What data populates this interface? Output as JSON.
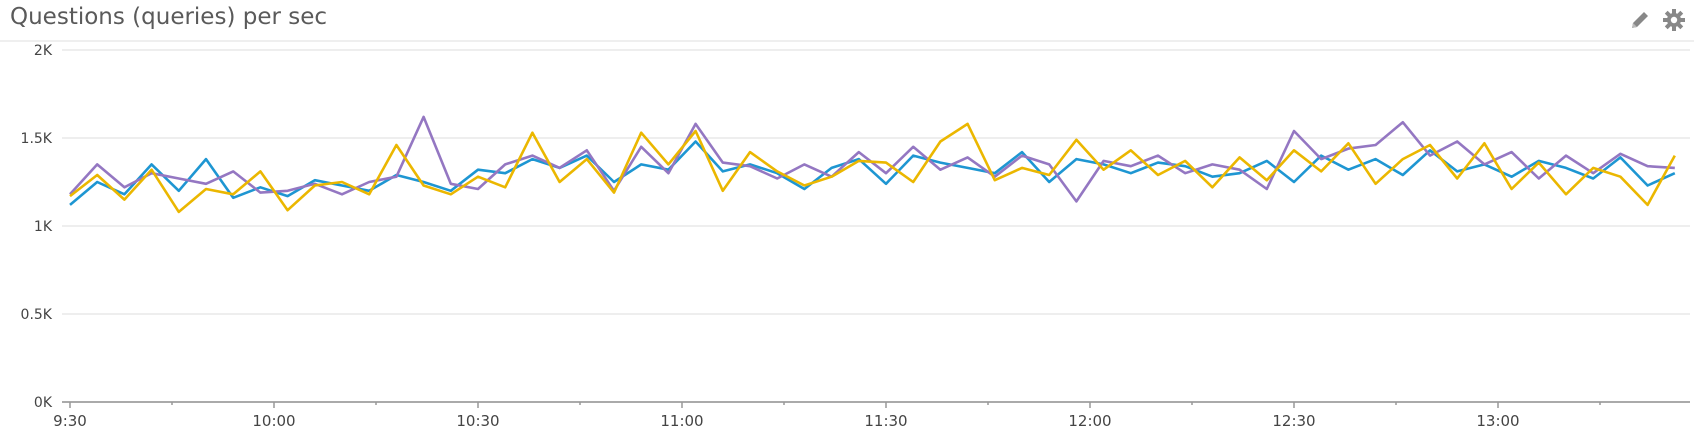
{
  "header": {
    "title": "Questions (queries) per sec",
    "icons": [
      "pencil-icon",
      "gear-icon"
    ]
  },
  "chart_data": {
    "type": "line",
    "title": "Questions (queries) per sec",
    "xlabel": "",
    "ylabel": "",
    "ylim": [
      0,
      2000
    ],
    "y_ticks": [
      {
        "v": 0,
        "label": "0K"
      },
      {
        "v": 500,
        "label": "0.5K"
      },
      {
        "v": 1000,
        "label": "1K"
      },
      {
        "v": 1500,
        "label": "1.5K"
      },
      {
        "v": 2000,
        "label": "2K"
      }
    ],
    "x_ticks": [
      "9:30",
      "10:00",
      "10:30",
      "11:00",
      "11:30",
      "12:00",
      "12:30",
      "13:00"
    ],
    "grid": true,
    "x": [
      "09:30",
      "09:34",
      "09:38",
      "09:42",
      "09:46",
      "09:50",
      "09:54",
      "09:58",
      "10:02",
      "10:06",
      "10:10",
      "10:14",
      "10:18",
      "10:22",
      "10:26",
      "10:30",
      "10:34",
      "10:38",
      "10:42",
      "10:46",
      "10:50",
      "10:54",
      "10:58",
      "11:02",
      "11:06",
      "11:10",
      "11:14",
      "11:18",
      "11:22",
      "11:26",
      "11:30",
      "11:34",
      "11:38",
      "11:42",
      "11:46",
      "11:50",
      "11:54",
      "11:58",
      "12:02",
      "12:06",
      "12:10",
      "12:14",
      "12:18",
      "12:22",
      "12:26",
      "12:30",
      "12:34",
      "12:38",
      "12:42",
      "12:46",
      "12:50",
      "12:54",
      "12:58",
      "13:02",
      "13:06",
      "13:10",
      "13:14",
      "13:18",
      "13:22",
      "13:26"
    ],
    "series": [
      {
        "color": "#1e96d2",
        "values": [
          1120,
          1250,
          1180,
          1350,
          1200,
          1380,
          1160,
          1220,
          1170,
          1260,
          1230,
          1200,
          1290,
          1250,
          1200,
          1320,
          1300,
          1380,
          1330,
          1400,
          1250,
          1350,
          1320,
          1480,
          1310,
          1350,
          1300,
          1210,
          1330,
          1380,
          1240,
          1400,
          1360,
          1330,
          1300,
          1420,
          1250,
          1380,
          1350,
          1300,
          1360,
          1340,
          1280,
          1300,
          1370,
          1250,
          1400,
          1320,
          1380,
          1290,
          1430,
          1310,
          1350,
          1280,
          1370,
          1330,
          1270,
          1390,
          1230,
          1300
        ]
      },
      {
        "color": "#9477c2",
        "values": [
          1180,
          1350,
          1220,
          1300,
          1270,
          1240,
          1310,
          1190,
          1200,
          1240,
          1180,
          1250,
          1280,
          1620,
          1240,
          1210,
          1350,
          1400,
          1330,
          1430,
          1200,
          1450,
          1300,
          1580,
          1360,
          1340,
          1270,
          1350,
          1280,
          1420,
          1300,
          1450,
          1320,
          1390,
          1280,
          1400,
          1350,
          1140,
          1370,
          1340,
          1400,
          1300,
          1350,
          1320,
          1210,
          1540,
          1380,
          1440,
          1460,
          1590,
          1400,
          1480,
          1350,
          1420,
          1270,
          1400,
          1300,
          1410,
          1340,
          1330
        ]
      },
      {
        "color": "#ebb700",
        "values": [
          1170,
          1290,
          1150,
          1320,
          1080,
          1210,
          1180,
          1310,
          1090,
          1230,
          1250,
          1180,
          1460,
          1230,
          1180,
          1280,
          1220,
          1530,
          1250,
          1380,
          1190,
          1530,
          1350,
          1540,
          1200,
          1420,
          1310,
          1230,
          1280,
          1370,
          1360,
          1250,
          1480,
          1580,
          1260,
          1330,
          1290,
          1490,
          1320,
          1430,
          1290,
          1370,
          1220,
          1390,
          1260,
          1430,
          1310,
          1470,
          1240,
          1380,
          1460,
          1270,
          1470,
          1210,
          1360,
          1180,
          1330,
          1280,
          1120,
          1400
        ]
      }
    ]
  }
}
